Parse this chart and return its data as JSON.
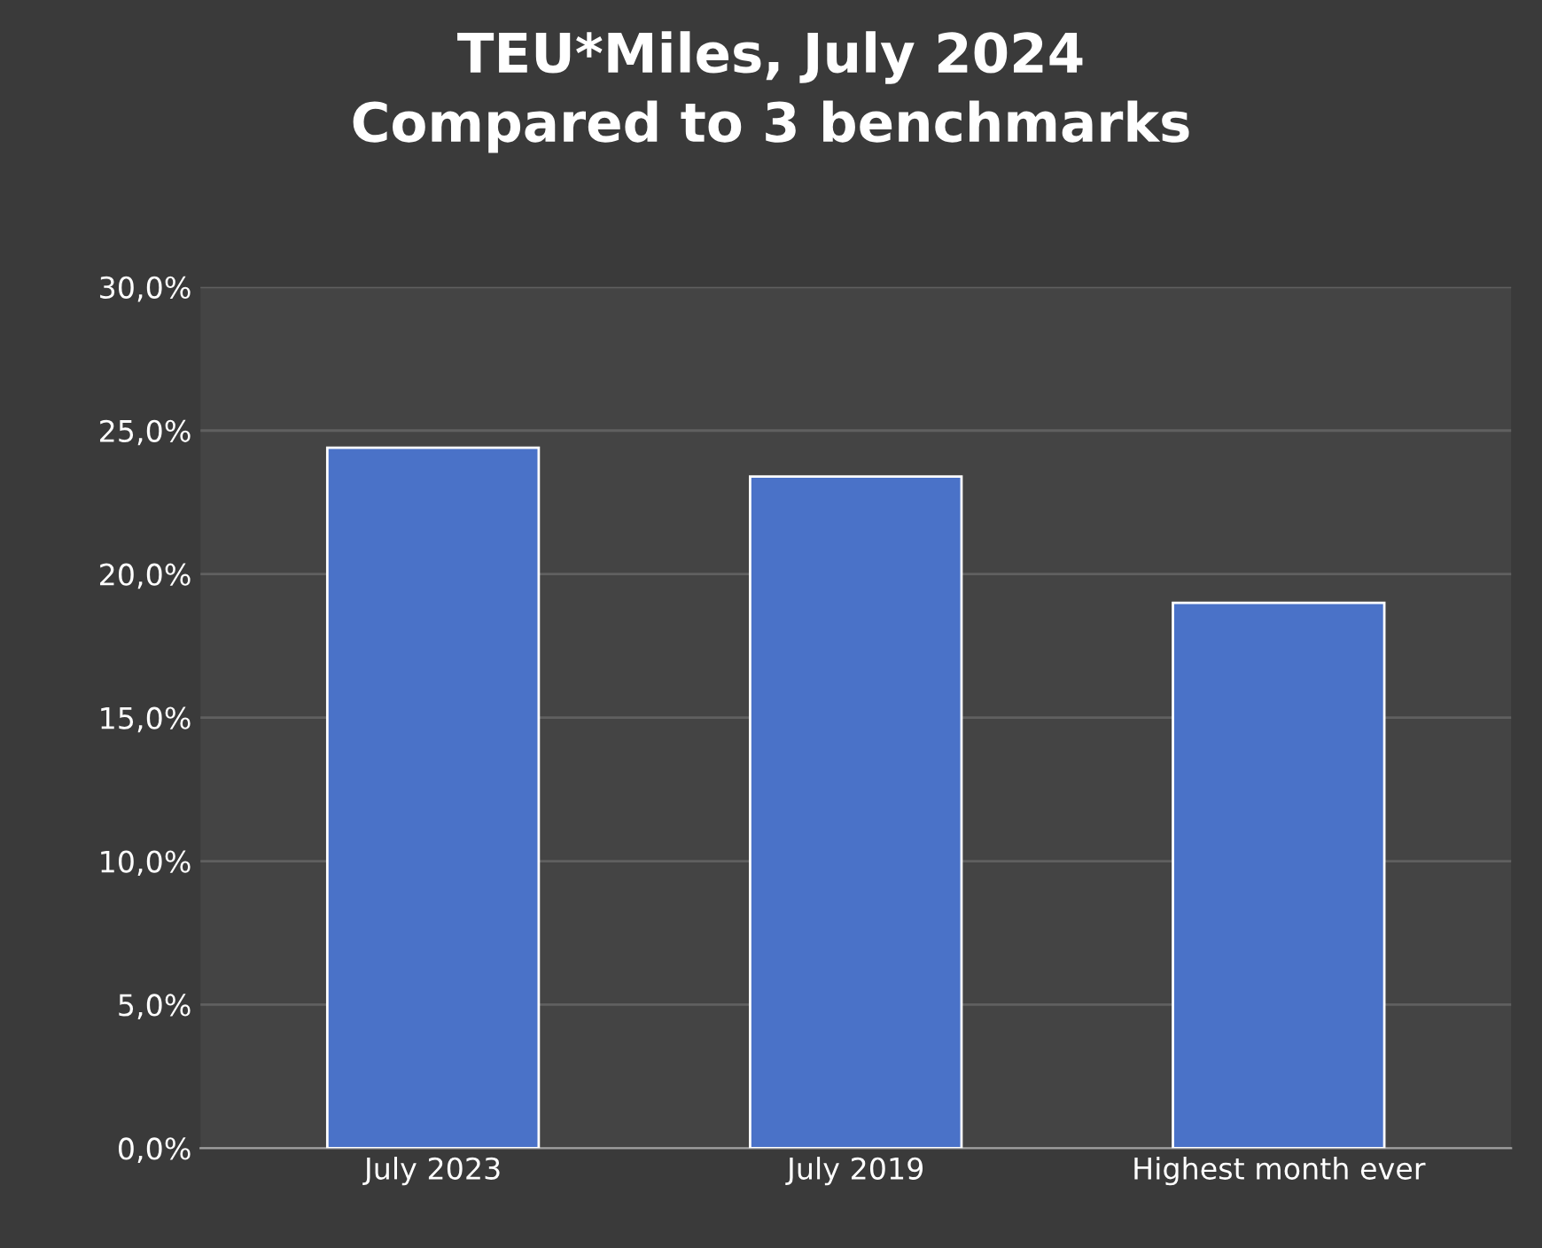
{
  "chart_data": {
    "type": "bar",
    "title": "TEU*Miles, July 2024\nCompared to 3 benchmarks",
    "categories": [
      "July 2023",
      "July 2019",
      "Highest month ever"
    ],
    "values": [
      24.4,
      23.4,
      19.0
    ],
    "color": "#4a72c8",
    "ylim": [
      0,
      30
    ],
    "yticks": [
      {
        "value": 0,
        "label": "0,0%"
      },
      {
        "value": 5,
        "label": "5,0%"
      },
      {
        "value": 10,
        "label": "10,0%"
      },
      {
        "value": 15,
        "label": "15,0%"
      },
      {
        "value": 20,
        "label": "20,0%"
      },
      {
        "value": 25,
        "label": "25,0%"
      },
      {
        "value": 30,
        "label": "30,0%"
      }
    ],
    "grid": "y"
  }
}
